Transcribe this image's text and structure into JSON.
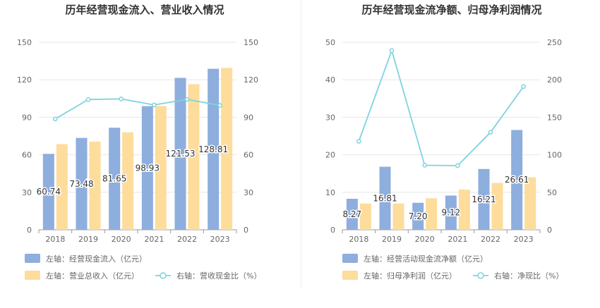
{
  "chart_data": [
    {
      "type": "bar",
      "title": "历年经营现金流入、营业收入情况",
      "categories": [
        "2018",
        "2019",
        "2020",
        "2021",
        "2022",
        "2023"
      ],
      "left_axis": {
        "ylim": [
          0,
          150
        ],
        "ticks": [
          0,
          30,
          60,
          90,
          120,
          150
        ]
      },
      "right_axis": {
        "ylim": [
          0,
          150
        ],
        "ticks": [
          0,
          30,
          60,
          90,
          120,
          150
        ]
      },
      "grid": true,
      "legend_position": "bottom-left",
      "series": [
        {
          "name": "左轴：经营现金流入（亿元）",
          "type": "bar",
          "axis": "left",
          "color": "#8eaedd",
          "values": [
            60.74,
            73.48,
            81.65,
            98.93,
            121.53,
            128.81
          ],
          "labels_shown": true
        },
        {
          "name": "左轴：营业总收入（亿元）",
          "type": "bar",
          "axis": "left",
          "color": "#fddc9c",
          "values": [
            68.5,
            70.5,
            78,
            99,
            116.5,
            129.5
          ],
          "labels_shown": false
        },
        {
          "name": "右轴：营收现金比（%）",
          "type": "line",
          "axis": "right",
          "color": "#7fd3de",
          "values": [
            88.7,
            104.2,
            104.7,
            99.9,
            104.3,
            99.5
          ],
          "labels_shown": false
        }
      ]
    },
    {
      "type": "bar",
      "title": "历年经营现金流净额、归母净利润情况",
      "categories": [
        "2018",
        "2019",
        "2020",
        "2021",
        "2022",
        "2023"
      ],
      "left_axis": {
        "ylim": [
          0,
          50
        ],
        "ticks": [
          0,
          10,
          20,
          30,
          40,
          50
        ]
      },
      "right_axis": {
        "ylim": [
          0,
          250
        ],
        "ticks": [
          0,
          50,
          100,
          150,
          200,
          250
        ]
      },
      "grid": true,
      "legend_position": "bottom-left",
      "series": [
        {
          "name": "左轴：经营活动现金流净额（亿元）",
          "type": "bar",
          "axis": "left",
          "color": "#8eaedd",
          "values": [
            8.27,
            16.81,
            7.2,
            9.12,
            16.21,
            26.61
          ],
          "labels_shown": true
        },
        {
          "name": "左轴：归母净利润（亿元）",
          "type": "bar",
          "axis": "left",
          "color": "#fddc9c",
          "values": [
            7.0,
            7.0,
            8.4,
            10.7,
            12.5,
            14.0
          ],
          "labels_shown": false
        },
        {
          "name": "右轴：净现比（%）",
          "type": "line",
          "axis": "right",
          "color": "#7fd3de",
          "values": [
            118,
            239,
            86,
            85.5,
            130,
            191
          ],
          "labels_shown": false
        }
      ]
    }
  ]
}
